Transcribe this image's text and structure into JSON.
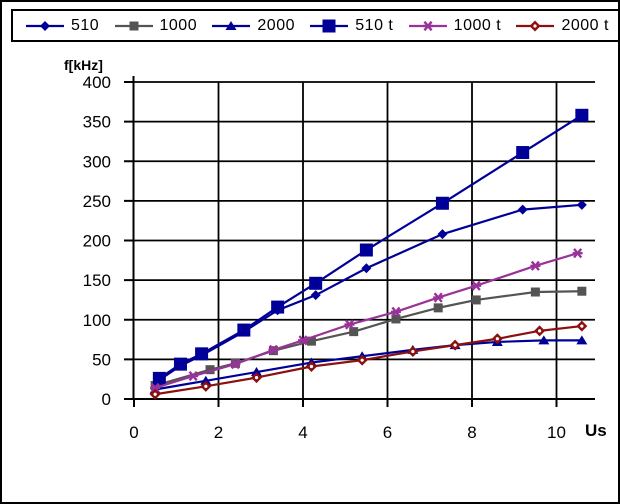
{
  "window": {
    "background": "#FFFFFF",
    "border_color": "#000000"
  },
  "chart_data": {
    "type": "line",
    "title": "",
    "ylabel": "f[kHz]",
    "xlabel": "Us",
    "xlim": [
      0,
      10.9
    ],
    "ylim": [
      0,
      400
    ],
    "xticks": [
      0,
      2,
      4,
      6,
      8,
      10
    ],
    "yticks": [
      0,
      50,
      100,
      150,
      200,
      250,
      300,
      350,
      400
    ],
    "grid": true,
    "grid_color": "#000000",
    "legend_position": "top",
    "series": [
      {
        "name": "510",
        "color": "#000099",
        "marker": "diamond",
        "x": [
          0.6,
          1.1,
          1.6,
          2.6,
          3.4,
          4.3,
          5.5,
          7.3,
          9.2,
          10.6
        ],
        "y": [
          24,
          42,
          55,
          85,
          112,
          131,
          165,
          208,
          239,
          245
        ]
      },
      {
        "name": "1000",
        "color": "#545454",
        "marker": "square",
        "x": [
          0.5,
          1.8,
          2.4,
          3.3,
          4.2,
          5.2,
          6.2,
          7.2,
          8.1,
          9.5,
          10.6
        ],
        "y": [
          17,
          37,
          45,
          61,
          73,
          85,
          101,
          115,
          125,
          135,
          136
        ]
      },
      {
        "name": "2000",
        "color": "#000099",
        "marker": "triangle",
        "x": [
          0.5,
          1.7,
          2.9,
          4.2,
          5.4,
          6.6,
          7.6,
          8.6,
          9.7,
          10.6
        ],
        "y": [
          12,
          23,
          34,
          46,
          54,
          62,
          68,
          72,
          74,
          74
        ]
      },
      {
        "name": "510 t",
        "color": "#000099",
        "marker": "big-square",
        "x": [
          0.6,
          1.1,
          1.6,
          2.6,
          3.4,
          4.3,
          5.5,
          7.3,
          9.2,
          10.6
        ],
        "y": [
          26,
          44,
          57,
          87,
          116,
          146,
          188,
          247,
          311,
          358
        ]
      },
      {
        "name": "1000 t",
        "color": "#993399",
        "marker": "asterisk",
        "x": [
          0.5,
          1.4,
          2.4,
          3.3,
          4.0,
          5.1,
          6.2,
          7.2,
          8.1,
          9.5,
          10.5
        ],
        "y": [
          14,
          29,
          44,
          62,
          74,
          94,
          110,
          128,
          143,
          168,
          184
        ]
      },
      {
        "name": "2000 t",
        "color": "#8B1010",
        "marker": "ring-diamond",
        "x": [
          0.5,
          1.7,
          2.9,
          4.2,
          5.4,
          6.6,
          7.6,
          8.6,
          9.6,
          10.6
        ],
        "y": [
          6,
          16,
          27,
          41,
          49,
          60,
          68,
          76,
          86,
          92
        ]
      }
    ]
  }
}
